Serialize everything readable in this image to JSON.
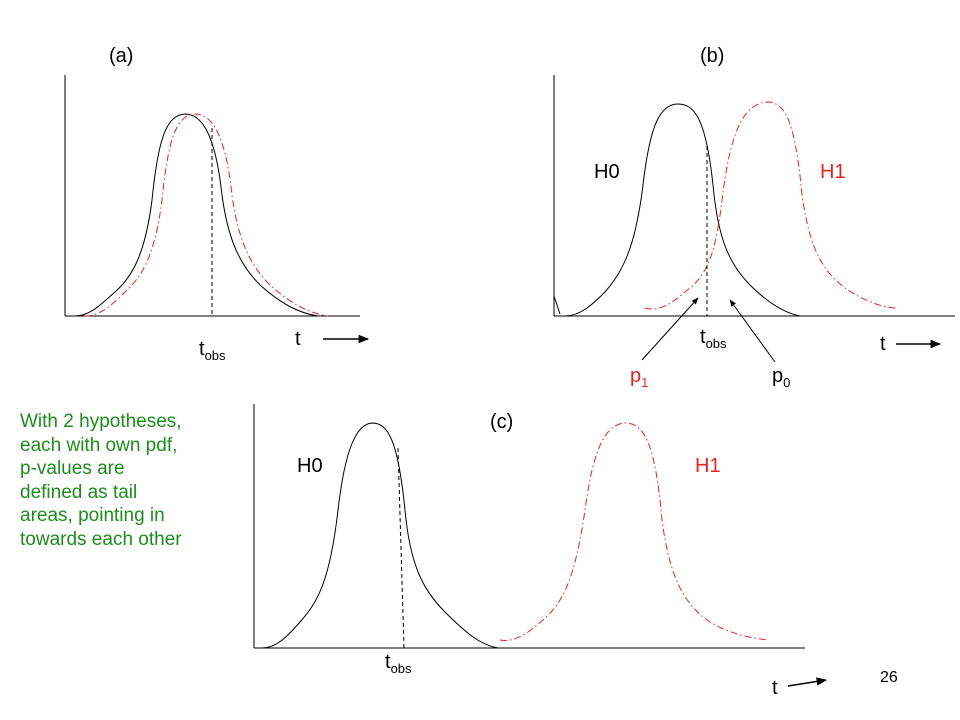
{
  "colors": {
    "h0_curve": "#000000",
    "h1_curve": "#e8231f",
    "note_text": "#1e8c1e"
  },
  "panel_a": {
    "label": "(a)",
    "t_label": "t",
    "tobs_main": "t",
    "tobs_sub": "obs"
  },
  "panel_b": {
    "label": "(b)",
    "h0_label": "H0",
    "h1_label": "H1",
    "t_label": "t",
    "tobs_main": "t",
    "tobs_sub": "obs",
    "p1_main": "p",
    "p1_sub": "1",
    "p0_main": "p",
    "p0_sub": "0"
  },
  "panel_c": {
    "label": "(c)",
    "h0_label": "H0",
    "h1_label": "H1",
    "t_label": "t",
    "tobs_main": "t",
    "tobs_sub": "obs"
  },
  "note": {
    "lines": [
      "With 2 hypotheses,",
      "each with own pdf,",
      "p-values are",
      "defined as tail",
      "areas, pointing in",
      "towards each other"
    ]
  },
  "page_number": "26"
}
